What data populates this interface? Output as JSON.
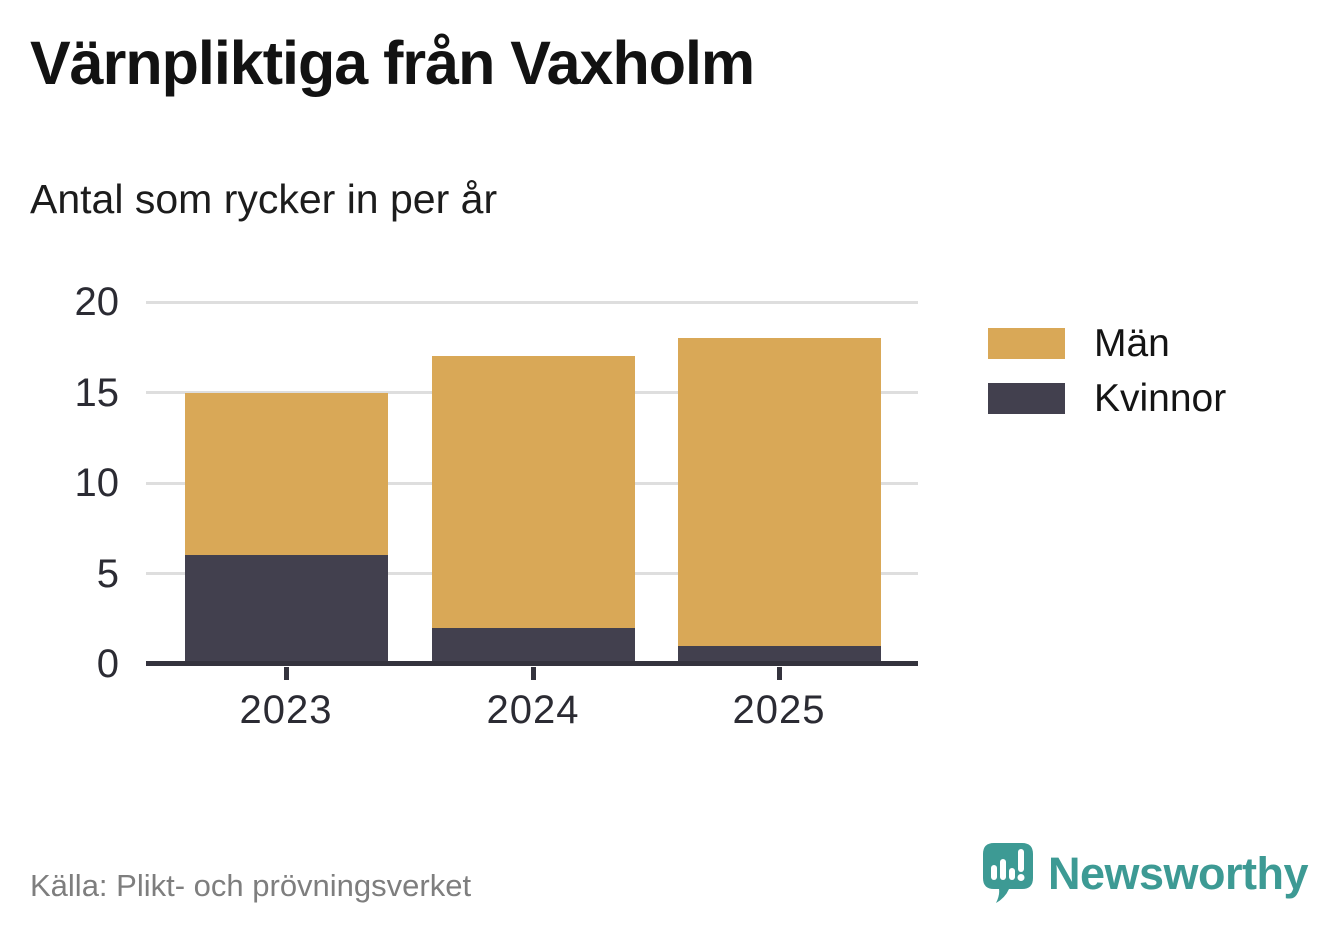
{
  "title": "Värnpliktiga från Vaxholm",
  "subtitle": "Antal som rycker in per år",
  "source": "Källa: Plikt- och prövningsverket",
  "branding": {
    "wordmark": "Newsworthy",
    "color": "#3d9a94"
  },
  "colors": {
    "men": "#d9a857",
    "women": "#42404e",
    "axis": "#34333d",
    "grid": "#dedede"
  },
  "legend": {
    "items": [
      {
        "label": "Män",
        "color_key": "men"
      },
      {
        "label": "Kvinnor",
        "color_key": "women"
      }
    ]
  },
  "chart_data": {
    "type": "bar",
    "stacked": true,
    "title": "Värnpliktiga från Vaxholm",
    "subtitle": "Antal som rycker in per år",
    "categories": [
      "2023",
      "2024",
      "2025"
    ],
    "series": [
      {
        "name": "Män",
        "color_key": "men",
        "values": [
          9,
          15,
          17
        ]
      },
      {
        "name": "Kvinnor",
        "color_key": "women",
        "values": [
          6,
          2,
          1
        ]
      }
    ],
    "stack_order_bottom_to_top": [
      "Kvinnor",
      "Män"
    ],
    "totals": [
      15,
      17,
      18
    ],
    "xlabel": "",
    "ylabel": "",
    "yticks": [
      0,
      5,
      10,
      15,
      20
    ],
    "ylim": [
      0,
      20
    ],
    "grid": true,
    "legend_position": "right"
  }
}
